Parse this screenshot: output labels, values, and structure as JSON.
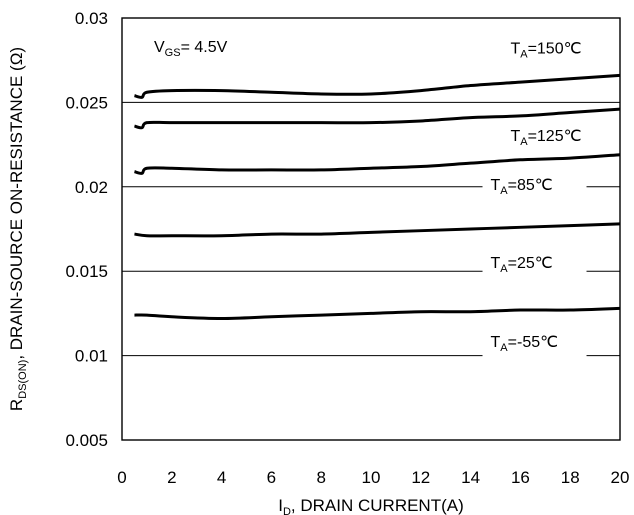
{
  "chart_data": {
    "type": "line",
    "xlabel": {
      "main": "I",
      "sub": "D",
      "rest": ", DRAIN CURRENT(A)"
    },
    "ylabel": {
      "main": "R",
      "sub": "DS(ON)",
      "rest": ",   DRAIN-SOURCE ON-RESISTANCE (Ω)"
    },
    "xlim": [
      0,
      20
    ],
    "ylim": [
      0.005,
      0.03
    ],
    "xticks": [
      "0",
      "2",
      "4",
      "6",
      "8",
      "10",
      "12",
      "14",
      "16",
      "18",
      "20"
    ],
    "yticks": [
      "0.005",
      "0.01",
      "0.015",
      "0.02",
      "0.025",
      "0.03"
    ],
    "grid": "horizontal",
    "annotation": {
      "main": "V",
      "sub": "GS",
      "rest": "= 4.5V"
    },
    "series": [
      {
        "name": "T_A=150℃",
        "label_main": "T",
        "label_sub": "A",
        "label_rest": "=150℃",
        "x": [
          0.5,
          0.8,
          1.0,
          2,
          4,
          6,
          8,
          10,
          12,
          14,
          16,
          18,
          20
        ],
        "y": [
          0.0254,
          0.0253,
          0.0256,
          0.0257,
          0.0257,
          0.0256,
          0.0255,
          0.0255,
          0.0257,
          0.026,
          0.0262,
          0.0264,
          0.0266
        ]
      },
      {
        "name": "T_A=125℃",
        "label_main": "T",
        "label_sub": "A",
        "label_rest": "=125℃",
        "x": [
          0.5,
          0.8,
          1.0,
          2,
          4,
          6,
          8,
          10,
          12,
          14,
          16,
          18,
          20
        ],
        "y": [
          0.0236,
          0.0235,
          0.0238,
          0.0238,
          0.0238,
          0.0238,
          0.0238,
          0.0238,
          0.0239,
          0.0241,
          0.0242,
          0.0244,
          0.0246
        ]
      },
      {
        "name": "T_A=85℃",
        "label_main": "T",
        "label_sub": "A",
        "label_rest": "=85℃",
        "x": [
          0.5,
          0.8,
          1.0,
          2,
          4,
          6,
          8,
          10,
          12,
          14,
          16,
          18,
          20
        ],
        "y": [
          0.0209,
          0.0208,
          0.0211,
          0.0211,
          0.021,
          0.021,
          0.021,
          0.0211,
          0.0212,
          0.0214,
          0.0216,
          0.0217,
          0.0219
        ]
      },
      {
        "name": "T_A=25℃",
        "label_main": "T",
        "label_sub": "A",
        "label_rest": "=25℃",
        "x": [
          0.5,
          1.0,
          2,
          4,
          6,
          8,
          10,
          12,
          14,
          16,
          18,
          20
        ],
        "y": [
          0.0172,
          0.0171,
          0.0171,
          0.0171,
          0.0172,
          0.0172,
          0.0173,
          0.0174,
          0.0175,
          0.0176,
          0.0177,
          0.0178
        ]
      },
      {
        "name": "T_A=-55℃",
        "label_main": "T",
        "label_sub": "A",
        "label_rest": "=-55℃",
        "x": [
          0.5,
          1.0,
          2,
          4,
          6,
          8,
          10,
          12,
          14,
          16,
          18,
          20
        ],
        "y": [
          0.0124,
          0.0124,
          0.0123,
          0.0122,
          0.0123,
          0.0124,
          0.0125,
          0.0126,
          0.0126,
          0.0127,
          0.0127,
          0.0128
        ]
      }
    ]
  }
}
